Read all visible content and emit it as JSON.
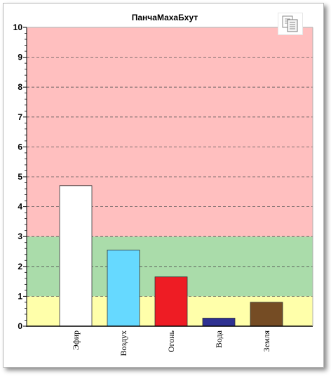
{
  "colors": {
    "zone_low": "#ffffaa",
    "zone_mid": "#aadcaa",
    "zone_high": "#ffbfbf",
    "grid": "#555555",
    "axis": "#000000",
    "bar_stroke": "#333333"
  },
  "toolbar": {
    "copy_icon": "copy-icon"
  },
  "chart_data": {
    "type": "bar",
    "title": "ПанчаМахаБхут",
    "xlabel": "",
    "ylabel": "",
    "ylim": [
      0,
      10
    ],
    "yticks": [
      "0",
      "1",
      "2",
      "3",
      "4",
      "5",
      "6",
      "7",
      "8",
      "9",
      "10"
    ],
    "grid": true,
    "bands": [
      {
        "from": 0,
        "to": 1,
        "color": "#ffffaa"
      },
      {
        "from": 1,
        "to": 3,
        "color": "#aadcaa"
      },
      {
        "from": 3,
        "to": 10,
        "color": "#ffbfbf"
      }
    ],
    "categories": [
      "Эфир",
      "Воздух",
      "Огонь",
      "Вода",
      "Земля"
    ],
    "values": [
      4.7,
      2.55,
      1.65,
      0.27,
      0.8
    ],
    "bar_colors": [
      "#ffffff",
      "#66d9ff",
      "#ee1c24",
      "#2e3192",
      "#754c24"
    ]
  }
}
